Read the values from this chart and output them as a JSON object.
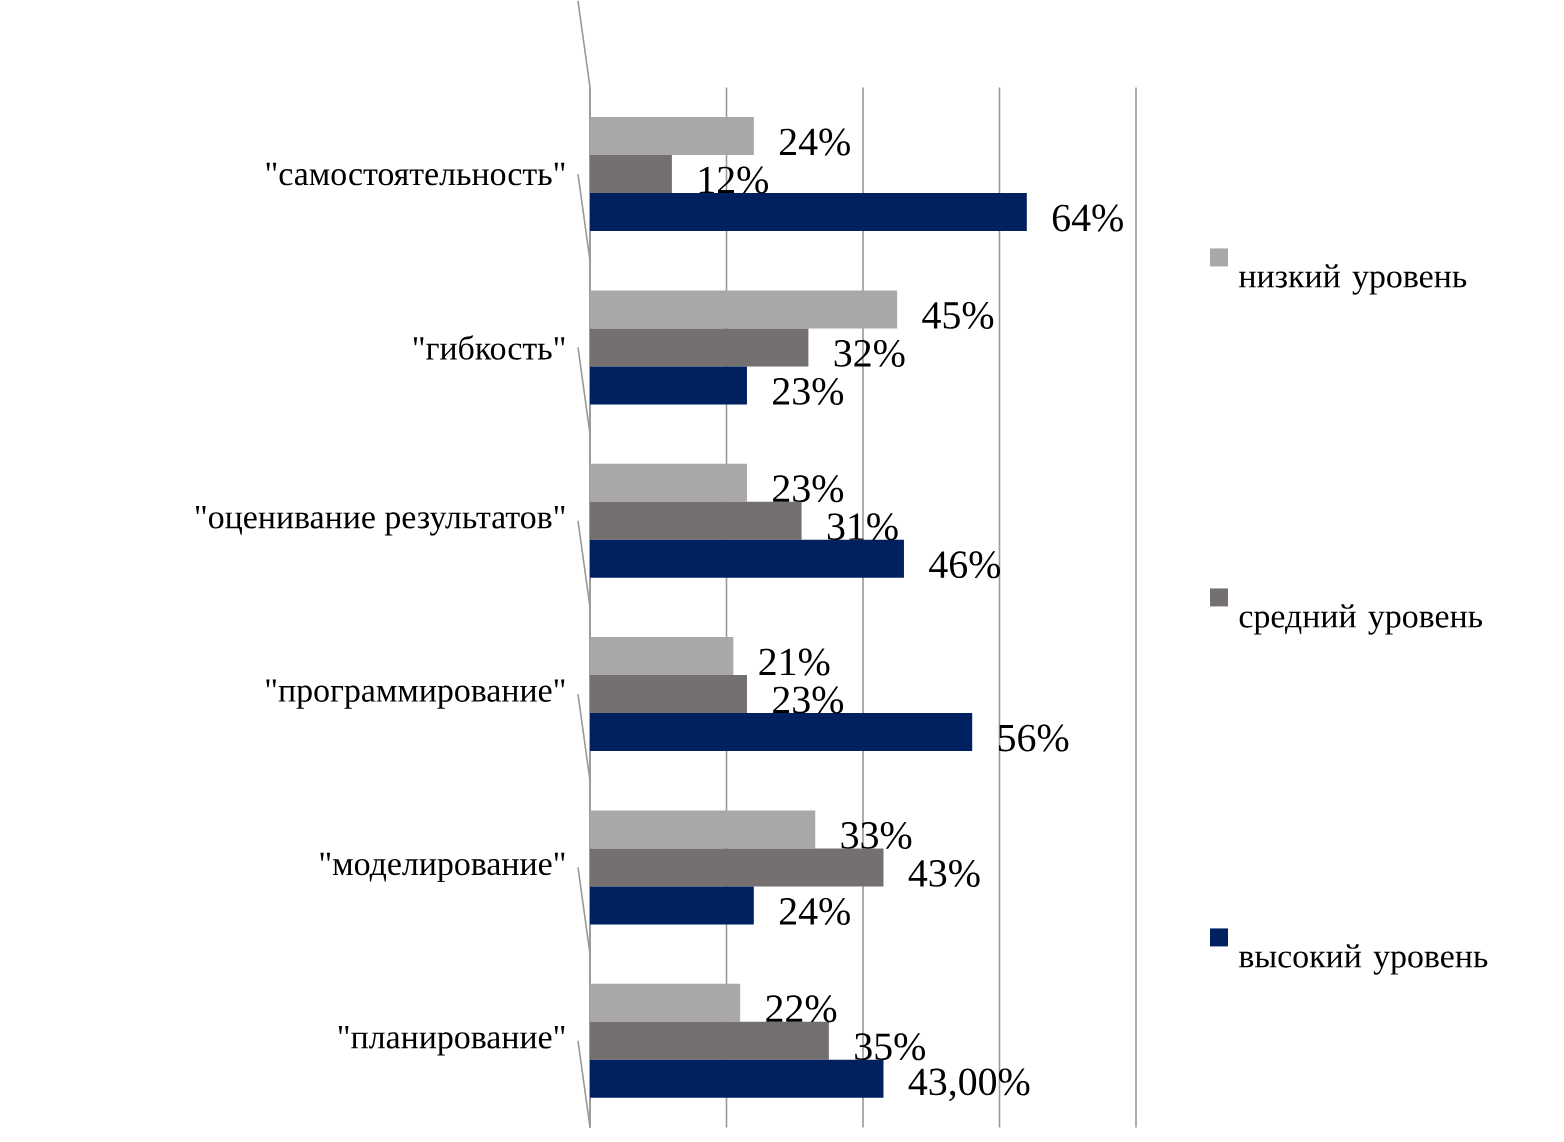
{
  "chart_data": {
    "type": "bar",
    "orientation": "horizontal",
    "categories": [
      "\"самостоятельность\"",
      "\"гибкость\"",
      "\"оценивание результатов\"",
      "\"программирование\"",
      "\"моделирование\"",
      "\"планирование\""
    ],
    "series": [
      {
        "name": "низкий уровень",
        "color": "#a9a7a7",
        "values": [
          24,
          45,
          23,
          21,
          33,
          22
        ],
        "value_labels": [
          "24%",
          "45%",
          "23%",
          "21%",
          "33%",
          "22%"
        ]
      },
      {
        "name": "средний уровень",
        "color": "#747070",
        "values": [
          12,
          32,
          31,
          23,
          43,
          35
        ],
        "value_labels": [
          "12%",
          "32%",
          "31%",
          "23%",
          "43%",
          "35%"
        ]
      },
      {
        "name": "высокий уровень",
        "color": "#002060",
        "values": [
          64,
          23,
          46,
          56,
          24,
          43
        ],
        "value_labels": [
          "64%",
          "23%",
          "46%",
          "56%",
          "24%",
          "43,00%"
        ]
      }
    ],
    "xlim": [
      0,
      80
    ],
    "xticks": [
      {
        "value": 0,
        "label": null
      },
      {
        "value": 20,
        "label": null
      },
      {
        "value": 40,
        "label": null
      },
      {
        "value": 60,
        "label": null
      },
      {
        "value": 80,
        "label": null
      }
    ],
    "tick_labels": "y",
    "grid": "x",
    "legend": "right"
  }
}
